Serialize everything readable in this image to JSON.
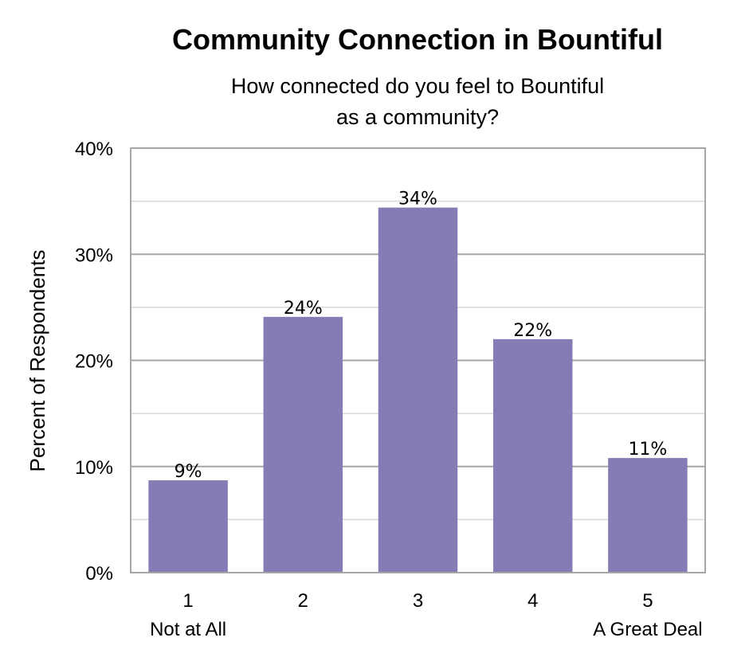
{
  "chart_data": {
    "type": "bar",
    "title": "Community Connection in Bountiful",
    "subtitle_lines": [
      "How connected do you feel to Bountiful",
      "as a community?"
    ],
    "ylabel": "Percent of Respondents",
    "xlabel": "",
    "categories": [
      "1",
      "2",
      "3",
      "4",
      "5"
    ],
    "category_sublabels": [
      "Not at All",
      "",
      "",
      "",
      "A Great Deal"
    ],
    "values": [
      8.7,
      24.1,
      34.4,
      22.0,
      10.8
    ],
    "data_labels": [
      "9%",
      "24%",
      "34%",
      "22%",
      "11%"
    ],
    "ylim": [
      0,
      40
    ],
    "yticks": [
      0,
      10,
      20,
      30,
      40
    ],
    "ytick_labels": [
      "0%",
      "10%",
      "20%",
      "30%",
      "40%"
    ],
    "grid": true,
    "minor_grid": [
      5,
      15,
      25,
      35
    ],
    "legend": "none",
    "colors": {
      "bar": "#877bb5",
      "major_grid": "#a6a6a6",
      "minor_grid": "#d9d9d9",
      "frame": "#a6a6a6"
    }
  }
}
